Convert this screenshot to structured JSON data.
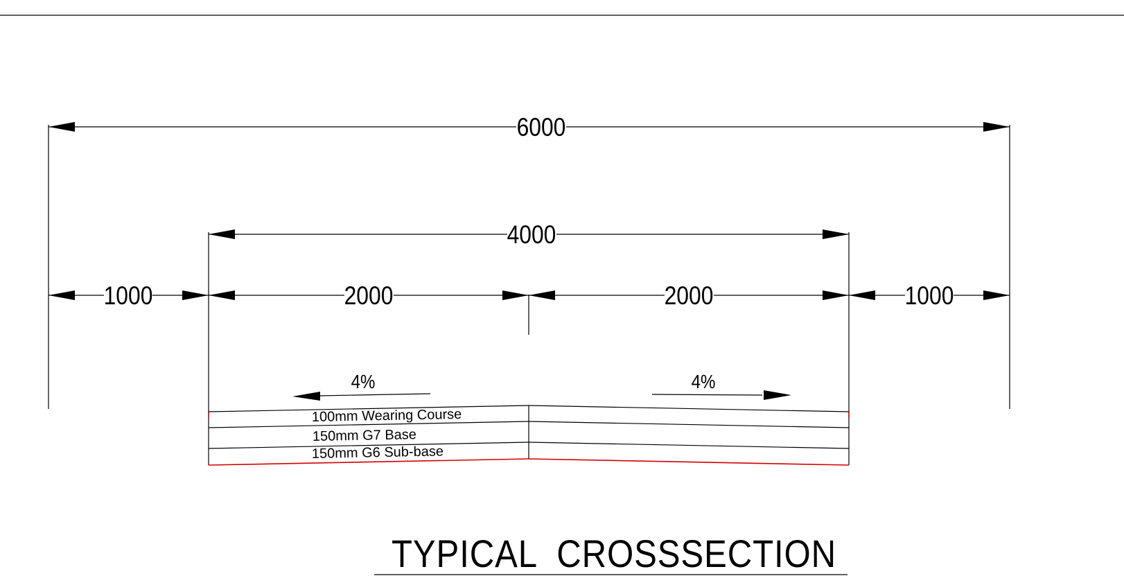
{
  "dimensions": {
    "overall": "6000",
    "carriageway": "4000",
    "left_shoulder": "1000",
    "left_lane": "2000",
    "right_lane": "2000",
    "right_shoulder": "1000"
  },
  "crossfall": {
    "left": "4%",
    "right": "4%"
  },
  "layers": [
    {
      "label": "100mm Wearing Course"
    },
    {
      "label": "150mm G7 Base"
    },
    {
      "label": "150mm G6 Sub-base"
    }
  ],
  "title": "TYPICAL  CROSSSECTION",
  "colors": {
    "line": "#000000",
    "subgrade_edge": "#d40000"
  }
}
